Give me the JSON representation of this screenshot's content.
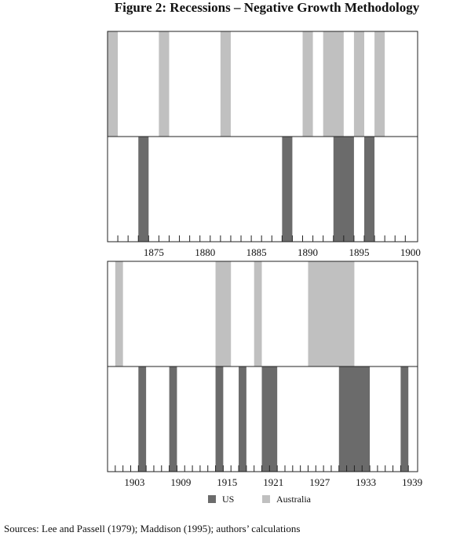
{
  "chart_data": [
    {
      "type": "timeline",
      "title": "Figure 2: Recessions – Negative Growth Methodology",
      "xlim": [
        1870.5,
        1900.7
      ],
      "xticks": [
        1875,
        1880,
        1885,
        1890,
        1895,
        1900
      ],
      "xminorticks": [
        1871.5,
        1872.5,
        1873.5,
        1874.5,
        1875.5,
        1876.5,
        1877.5,
        1878.5,
        1879.5,
        1880.5,
        1881.5,
        1882.5,
        1883.5,
        1884.5,
        1885.5,
        1886.5,
        1887.5,
        1888.5,
        1889.5,
        1890.5,
        1891.5,
        1892.5,
        1893.5,
        1894.5,
        1895.5,
        1896.5,
        1897.5,
        1898.5,
        1899.5
      ],
      "series": [
        {
          "name": "US",
          "color": "#6b6b6b",
          "values": [
            [
              1873.5,
              1874.5
            ],
            [
              1887.5,
              1888.5
            ],
            [
              1892.5,
              1894.5
            ],
            [
              1895.5,
              1896.5
            ]
          ]
        },
        {
          "name": "Australia",
          "color": "#c0c0c0",
          "values": [
            [
              1870.5,
              1871.5
            ],
            [
              1875.5,
              1876.5
            ],
            [
              1881.5,
              1882.5
            ],
            [
              1889.5,
              1890.5
            ],
            [
              1891.5,
              1893.5
            ],
            [
              1894.5,
              1895.5
            ],
            [
              1896.5,
              1897.5
            ]
          ]
        }
      ]
    },
    {
      "type": "timeline",
      "note": "Sources:   Lee and Passell (1979); Maddison (1995); authors’ calculations",
      "xlim": [
        1899.5,
        1939.7
      ],
      "xticks": [
        1903,
        1909,
        1915,
        1921,
        1927,
        1933,
        1939
      ],
      "xminorticks": [
        1900.5,
        1901.5,
        1902.5,
        1903.5,
        1904.5,
        1905.5,
        1906.5,
        1907.5,
        1908.5,
        1909.5,
        1910.5,
        1911.5,
        1912.5,
        1913.5,
        1914.5,
        1915.5,
        1916.5,
        1917.5,
        1918.5,
        1919.5,
        1920.5,
        1921.5,
        1922.5,
        1923.5,
        1924.5,
        1925.5,
        1926.5,
        1927.5,
        1928.5,
        1929.5,
        1930.5,
        1931.5,
        1932.5,
        1933.5,
        1934.5,
        1935.5,
        1936.5,
        1937.5,
        1938.5
      ],
      "series": [
        {
          "name": "US",
          "color": "#6b6b6b",
          "values": [
            [
              1903.5,
              1904.5
            ],
            [
              1907.5,
              1908.5
            ],
            [
              1913.5,
              1914.5
            ],
            [
              1916.5,
              1917.5
            ],
            [
              1919.5,
              1921.5
            ],
            [
              1929.5,
              1933.5
            ],
            [
              1937.5,
              1938.5
            ]
          ]
        },
        {
          "name": "Australia",
          "color": "#c0c0c0",
          "values": [
            [
              1900.5,
              1901.5
            ],
            [
              1913.5,
              1915.5
            ],
            [
              1918.5,
              1919.5
            ],
            [
              1925.5,
              1931.5
            ]
          ]
        }
      ]
    }
  ]
}
